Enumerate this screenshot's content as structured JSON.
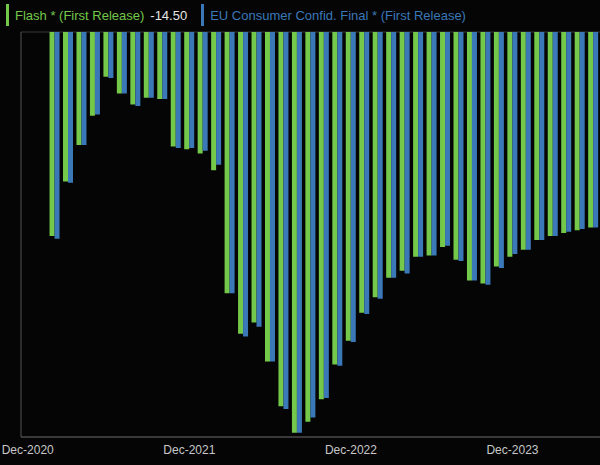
{
  "chart_data": {
    "type": "bar",
    "categories": [
      "Dec-2020",
      null,
      null,
      null,
      null,
      null,
      null,
      null,
      null,
      null,
      null,
      null,
      "Dec-2021",
      null,
      null,
      null,
      null,
      null,
      null,
      null,
      null,
      null,
      null,
      null,
      "Dec-2022",
      null,
      null,
      null,
      null,
      null,
      null,
      null,
      null,
      null,
      null,
      null,
      "Dec-2023",
      null,
      null,
      null,
      null,
      null,
      null
    ],
    "series": [
      {
        "name": "Flash * (First Release)",
        "color": "#74c84a",
        "values": [
          null,
          null,
          -14.6,
          -10.7,
          -8.1,
          -6.0,
          -3.2,
          -4.4,
          -5.2,
          -4.7,
          -4.8,
          -8.2,
          -8.4,
          -8.7,
          -9.9,
          -18.7,
          -21.6,
          -20.8,
          -23.6,
          -26.8,
          -28.7,
          -27.9,
          -26.3,
          -23.8,
          -22.1,
          -20.1,
          -19.0,
          -17.6,
          -17.1,
          -16.1,
          -16.0,
          -15.4,
          -16.3,
          -17.8,
          -18.0,
          -16.8,
          -16.1,
          -15.6,
          -14.9,
          -14.6,
          -14.4,
          -14.2,
          -14.0
        ]
      },
      {
        "name": "EU Consumer Confid. Final * (First Release)",
        "color": "#3b78b8",
        "values": [
          null,
          null,
          -14.8,
          -10.8,
          -8.1,
          -5.9,
          -3.3,
          -4.4,
          -5.3,
          -4.7,
          -4.8,
          -8.3,
          -8.3,
          -8.5,
          -9.5,
          -18.7,
          -21.8,
          -21.1,
          -23.6,
          -27.0,
          -28.7,
          -27.6,
          -26.2,
          -23.9,
          -22.2,
          -20.2,
          -19.1,
          -17.6,
          -17.3,
          -16.1,
          -16.0,
          -15.3,
          -16.4,
          -17.8,
          -18.1,
          -16.9,
          -15.9,
          -15.6,
          -14.9,
          -14.6,
          -14.3,
          -14.1,
          -14.0
        ]
      }
    ],
    "annotations": [
      {
        "series": "Flash * (First Release)",
        "text": "-14.50"
      }
    ],
    "ylim": [
      -29,
      0
    ],
    "yticks": [
      0,
      -2,
      -4,
      -6,
      -8,
      -10,
      -12,
      -14,
      -16,
      -18,
      -20,
      -22,
      -24,
      -26,
      -28
    ],
    "grid": true,
    "tick_labels": "x"
  }
}
